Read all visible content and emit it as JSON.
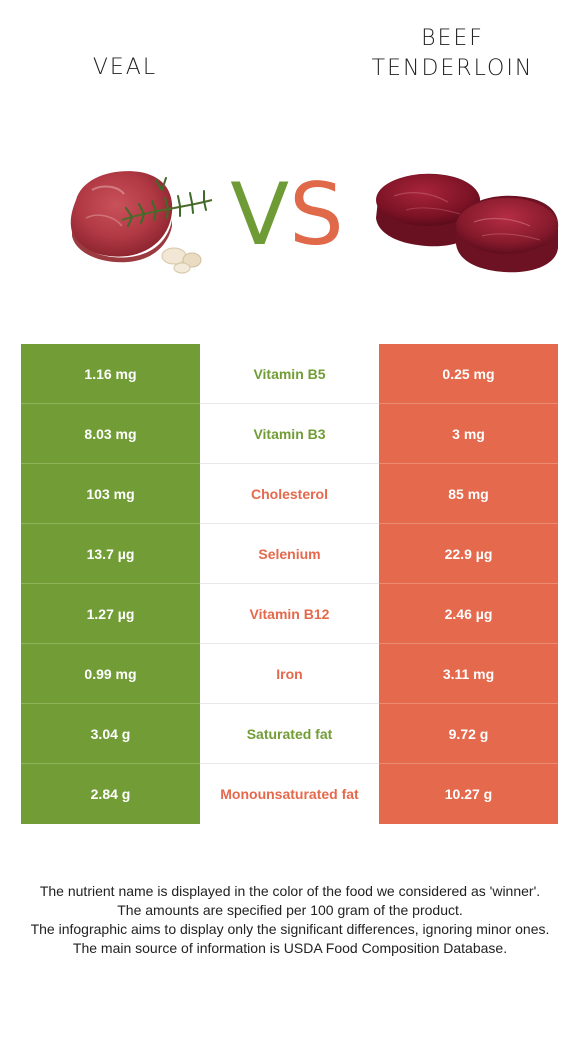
{
  "header": {
    "left_title": "VEAL",
    "right_title_line1": "BEEF",
    "right_title_line2": "TENDERLOIN",
    "vs_v": "V",
    "vs_s": "S"
  },
  "colors": {
    "left_winner": "#729d36",
    "right_winner": "#e5694c"
  },
  "rows": [
    {
      "left": "1.16 mg",
      "nutrient": "Vitamin B5",
      "right": "0.25 mg",
      "winner": "left"
    },
    {
      "left": "8.03 mg",
      "nutrient": "Vitamin B3",
      "right": "3 mg",
      "winner": "left"
    },
    {
      "left": "103 mg",
      "nutrient": "Cholesterol",
      "right": "85 mg",
      "winner": "right"
    },
    {
      "left": "13.7 µg",
      "nutrient": "Selenium",
      "right": "22.9 µg",
      "winner": "right"
    },
    {
      "left": "1.27 µg",
      "nutrient": "Vitamin B12",
      "right": "2.46 µg",
      "winner": "right"
    },
    {
      "left": "0.99 mg",
      "nutrient": "Iron",
      "right": "3.11 mg",
      "winner": "right"
    },
    {
      "left": "3.04 g",
      "nutrient": "Saturated fat",
      "right": "9.72 g",
      "winner": "left"
    },
    {
      "left": "2.84 g",
      "nutrient": "Monounsaturated fat",
      "right": "10.27 g",
      "winner": "right"
    }
  ],
  "footer": {
    "line1": "The nutrient name is displayed in the color of the food we considered as 'winner'.",
    "line2": "The amounts are specified per 100 gram of the product.",
    "line3": "The infographic aims to display only the significant differences, ignoring minor ones.",
    "line4": "The main source of information is USDA Food Composition Database."
  }
}
